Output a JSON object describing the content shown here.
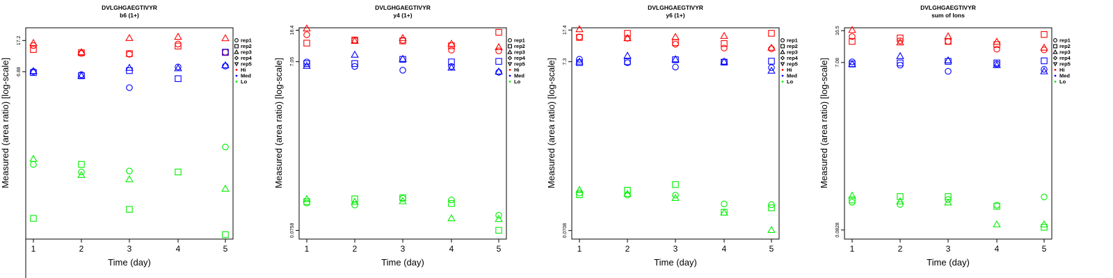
{
  "colors": {
    "Hi": "#ff0000",
    "Med": "#0000ff",
    "Lo": "#00ee00",
    "rep": "#000000"
  },
  "chart_data": [
    {
      "type": "scatter",
      "title": "DVLGHGAEGTIVYR",
      "subtitle": "b6 (1+)",
      "xlabel": "Time (day)",
      "ylabel": "Measured (area ratio) [log-scale]",
      "xticks": [
        "1",
        "2",
        "3",
        "4",
        "5"
      ],
      "xlim": [
        0.85,
        5.2
      ],
      "yscale": "log",
      "yticks": [
        "17.2",
        "6.88"
      ],
      "ylim": [
        0.05,
        25
      ],
      "legend": {
        "position": "right",
        "reps": [
          "rep1",
          "rep2",
          "rep3",
          "rep4",
          "rep5"
        ],
        "groups": [
          "Hi",
          "Med",
          "Lo"
        ]
      },
      "series": [
        {
          "group": "Hi",
          "rep": "rep1",
          "points": [
            [
              1,
              14.8
            ],
            [
              2,
              11.8
            ],
            [
              3,
              11.5
            ],
            [
              4,
              15.5
            ],
            [
              5,
              12.2
            ]
          ]
        },
        {
          "group": "Hi",
          "rep": "rep2",
          "points": [
            [
              1,
              13.2
            ],
            [
              2,
              12.0
            ],
            [
              3,
              11.7
            ],
            [
              4,
              14.6
            ],
            [
              5,
              12.1
            ]
          ]
        },
        {
          "group": "Hi",
          "rep": "rep3",
          "points": [
            [
              1,
              16.0
            ],
            [
              2,
              12.2
            ],
            [
              3,
              18.5
            ],
            [
              4,
              19.2
            ],
            [
              5,
              18.4
            ]
          ]
        },
        {
          "group": "Med",
          "rep": "rep1",
          "points": [
            [
              1,
              6.9
            ],
            [
              2,
              6.3
            ],
            [
              3,
              4.3
            ],
            [
              4,
              7.9
            ],
            [
              5,
              8.1
            ]
          ]
        },
        {
          "group": "Med",
          "rep": "rep2",
          "points": [
            [
              1,
              6.7
            ],
            [
              2,
              6.1
            ],
            [
              3,
              7.1
            ],
            [
              4,
              5.6
            ],
            [
              5,
              12.2
            ]
          ]
        },
        {
          "group": "Med",
          "rep": "rep3",
          "points": [
            [
              1,
              7.0
            ],
            [
              2,
              6.1
            ],
            [
              3,
              7.7
            ],
            [
              4,
              7.6
            ],
            [
              5,
              8.3
            ]
          ]
        },
        {
          "group": "Lo",
          "rep": "rep1",
          "points": [
            [
              1,
              0.45
            ],
            [
              2,
              0.36
            ],
            [
              3,
              0.37
            ],
            [
              5,
              0.75
            ]
          ]
        },
        {
          "group": "Lo",
          "rep": "rep2",
          "points": [
            [
              1,
              0.092
            ],
            [
              2,
              0.45
            ],
            [
              3,
              0.12
            ],
            [
              4,
              0.36
            ],
            [
              5,
              0.057
            ]
          ]
        },
        {
          "group": "Lo",
          "rep": "rep3",
          "points": [
            [
              1,
              0.53
            ],
            [
              2,
              0.33
            ],
            [
              3,
              0.29
            ],
            [
              5,
              0.22
            ]
          ]
        }
      ]
    },
    {
      "type": "scatter",
      "title": "DVLGHGAEGTIVYR",
      "subtitle": "y4 (1+)",
      "xlabel": "Time (day)",
      "ylabel": "Measured (area ratio) [log-scale]",
      "xticks": [
        "1",
        "2",
        "3",
        "4",
        "5"
      ],
      "xlim": [
        0.85,
        5.2
      ],
      "yscale": "log",
      "yticks": [
        "16.4",
        "7.05",
        "0.0758"
      ],
      "ylim": [
        0.06,
        17.5
      ],
      "legend": {
        "position": "right",
        "reps": [
          "rep1",
          "rep2",
          "rep3",
          "rep4",
          "rep5"
        ],
        "groups": [
          "Hi",
          "Med",
          "Lo"
        ]
      },
      "series": [
        {
          "group": "Hi",
          "rep": "rep1",
          "points": [
            [
              1,
              14.5
            ],
            [
              2,
              12.5
            ],
            [
              3,
              12.5
            ],
            [
              4,
              9.6
            ],
            [
              5,
              9.4
            ]
          ]
        },
        {
          "group": "Hi",
          "rep": "rep2",
          "points": [
            [
              1,
              11.6
            ],
            [
              2,
              12.6
            ],
            [
              3,
              12.3
            ],
            [
              4,
              10.8
            ],
            [
              5,
              15.5
            ]
          ]
        },
        {
          "group": "Hi",
          "rep": "rep3",
          "points": [
            [
              1,
              17.2
            ],
            [
              2,
              12.3
            ],
            [
              3,
              13.3
            ],
            [
              4,
              11.4
            ],
            [
              5,
              10.4
            ]
          ]
        },
        {
          "group": "Med",
          "rep": "rep1",
          "points": [
            [
              1,
              7.0
            ],
            [
              2,
              6.2
            ],
            [
              3,
              5.6
            ],
            [
              4,
              6.2
            ],
            [
              5,
              5.3
            ]
          ]
        },
        {
          "group": "Med",
          "rep": "rep2",
          "points": [
            [
              1,
              6.7
            ],
            [
              2,
              6.7
            ],
            [
              3,
              7.5
            ],
            [
              4,
              7.0
            ],
            [
              5,
              7.1
            ]
          ]
        },
        {
          "group": "Med",
          "rep": "rep3",
          "points": [
            [
              1,
              6.3
            ],
            [
              2,
              8.5
            ],
            [
              3,
              7.6
            ],
            [
              4,
              6.0
            ],
            [
              5,
              5.4
            ]
          ]
        },
        {
          "group": "Lo",
          "rep": "rep1",
          "points": [
            [
              1,
              0.158
            ],
            [
              2,
              0.15
            ],
            [
              3,
              0.179
            ],
            [
              4,
              0.172
            ],
            [
              5,
              0.114
            ]
          ]
        },
        {
          "group": "Lo",
          "rep": "rep2",
          "points": [
            [
              1,
              0.164
            ],
            [
              2,
              0.177
            ],
            [
              3,
              0.182
            ],
            [
              4,
              0.156
            ],
            [
              5,
              0.076
            ]
          ]
        },
        {
          "group": "Lo",
          "rep": "rep3",
          "points": [
            [
              1,
              0.176
            ],
            [
              2,
              0.164
            ],
            [
              3,
              0.166
            ],
            [
              4,
              0.105
            ],
            [
              5,
              0.103
            ]
          ]
        }
      ]
    },
    {
      "type": "scatter",
      "title": "DVLGHGAEGTIVYR",
      "subtitle": "y6 (1+)",
      "xlabel": "Time (day)",
      "ylabel": "Measured (area ratio) [log-scale]",
      "xticks": [
        "1",
        "2",
        "3",
        "4",
        "5"
      ],
      "xlim": [
        0.85,
        5.2
      ],
      "yscale": "log",
      "yticks": [
        "17.4",
        "7.3",
        "0.0708"
      ],
      "ylim": [
        0.056,
        18.5
      ],
      "legend": {
        "position": "right",
        "reps": [
          "rep1",
          "rep2",
          "rep3",
          "rep4",
          "rep5"
        ],
        "groups": [
          "Hi",
          "Med",
          "Lo"
        ]
      },
      "series": [
        {
          "group": "Hi",
          "rep": "rep1",
          "points": [
            [
              1,
              14.4
            ],
            [
              2,
              13.9
            ],
            [
              3,
              11.8
            ],
            [
              4,
              10.6
            ],
            [
              5,
              10.4
            ]
          ]
        },
        {
          "group": "Hi",
          "rep": "rep2",
          "points": [
            [
              1,
              14.2
            ],
            [
              2,
              15.9
            ],
            [
              3,
              12.3
            ],
            [
              4,
              12.0
            ],
            [
              5,
              15.9
            ]
          ]
        },
        {
          "group": "Hi",
          "rep": "rep3",
          "points": [
            [
              1,
              17.8
            ],
            [
              2,
              13.9
            ],
            [
              3,
              14.4
            ],
            [
              4,
              14.8
            ],
            [
              5,
              10.7
            ]
          ]
        },
        {
          "group": "Med",
          "rep": "rep1",
          "points": [
            [
              1,
              7.8
            ],
            [
              2,
              7.1
            ],
            [
              3,
              6.3
            ],
            [
              4,
              7.3
            ],
            [
              5,
              6.2
            ]
          ]
        },
        {
          "group": "Med",
          "rep": "rep2",
          "points": [
            [
              1,
              7.1
            ],
            [
              2,
              7.3
            ],
            [
              3,
              7.7
            ],
            [
              4,
              7.2
            ],
            [
              5,
              7.4
            ]
          ]
        },
        {
          "group": "Med",
          "rep": "rep3",
          "points": [
            [
              1,
              7.3
            ],
            [
              2,
              8.6
            ],
            [
              3,
              7.8
            ],
            [
              4,
              7.3
            ],
            [
              5,
              5.7
            ]
          ]
        },
        {
          "group": "Lo",
          "rep": "rep1",
          "points": [
            [
              1,
              0.198
            ],
            [
              2,
              0.188
            ],
            [
              3,
              0.187
            ],
            [
              4,
              0.147
            ],
            [
              5,
              0.144
            ]
          ]
        },
        {
          "group": "Lo",
          "rep": "rep2",
          "points": [
            [
              1,
              0.189
            ],
            [
              2,
              0.214
            ],
            [
              3,
              0.25
            ],
            [
              4,
              0.117
            ],
            [
              5,
              0.132
            ]
          ]
        },
        {
          "group": "Lo",
          "rep": "rep3",
          "points": [
            [
              1,
              0.216
            ],
            [
              2,
              0.194
            ],
            [
              3,
              0.173
            ],
            [
              4,
              0.116
            ],
            [
              5,
              0.072
            ]
          ]
        }
      ]
    },
    {
      "type": "scatter",
      "title": "DVLGHGAEGTIVYR",
      "subtitle": "sum of Ions",
      "xlabel": "Time (day)",
      "ylabel": "Measured (area ratio) [log-scale]",
      "xticks": [
        "1",
        "2",
        "3",
        "4",
        "5"
      ],
      "xlim": [
        0.85,
        5.2
      ],
      "yscale": "log",
      "yticks": [
        "16.5",
        "7.08",
        "0.0828"
      ],
      "ylim": [
        0.065,
        17.8
      ],
      "legend": {
        "position": "right",
        "reps": [
          "rep1",
          "rep2",
          "rep3",
          "rep4",
          "rep5"
        ],
        "groups": [
          "Hi",
          "Med",
          "Lo"
        ]
      },
      "series": [
        {
          "group": "Hi",
          "rep": "rep1",
          "points": [
            [
              1,
              14.1
            ],
            [
              2,
              12.6
            ],
            [
              3,
              12.4
            ],
            [
              4,
              10.1
            ],
            [
              5,
              9.9
            ]
          ]
        },
        {
          "group": "Hi",
          "rep": "rep2",
          "points": [
            [
              1,
              12.4
            ],
            [
              2,
              13.6
            ],
            [
              3,
              12.4
            ],
            [
              4,
              11.4
            ],
            [
              5,
              14.9
            ]
          ]
        },
        {
          "group": "Hi",
          "rep": "rep3",
          "points": [
            [
              1,
              16.8
            ],
            [
              2,
              12.1
            ],
            [
              3,
              14.2
            ],
            [
              4,
              12.3
            ],
            [
              5,
              10.5
            ]
          ]
        },
        {
          "group": "Med",
          "rep": "rep1",
          "points": [
            [
              1,
              7.2
            ],
            [
              2,
              6.6
            ],
            [
              3,
              5.6
            ],
            [
              4,
              6.8
            ],
            [
              5,
              5.9
            ]
          ]
        },
        {
          "group": "Med",
          "rep": "rep2",
          "points": [
            [
              1,
              6.8
            ],
            [
              2,
              7.0
            ],
            [
              3,
              7.3
            ],
            [
              4,
              7.0
            ],
            [
              5,
              7.4
            ]
          ]
        },
        {
          "group": "Med",
          "rep": "rep3",
          "points": [
            [
              1,
              6.8
            ],
            [
              2,
              8.4
            ],
            [
              3,
              7.5
            ],
            [
              4,
              6.6
            ],
            [
              5,
              5.6
            ]
          ]
        },
        {
          "group": "Lo",
          "rep": "rep1",
          "points": [
            [
              1,
              0.173
            ],
            [
              2,
              0.163
            ],
            [
              3,
              0.186
            ],
            [
              4,
              0.16
            ],
            [
              5,
              0.199
            ]
          ]
        },
        {
          "group": "Lo",
          "rep": "rep2",
          "points": [
            [
              1,
              0.184
            ],
            [
              2,
              0.201
            ],
            [
              3,
              0.201
            ],
            [
              4,
              0.155
            ],
            [
              5,
              0.089
            ]
          ]
        },
        {
          "group": "Lo",
          "rep": "rep3",
          "points": [
            [
              1,
              0.206
            ],
            [
              2,
              0.177
            ],
            [
              3,
              0.172
            ],
            [
              4,
              0.096
            ],
            [
              5,
              0.096
            ]
          ]
        }
      ]
    }
  ]
}
